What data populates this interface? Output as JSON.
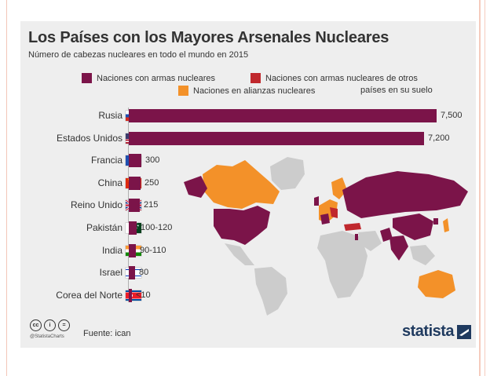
{
  "chart_data": {
    "type": "bar",
    "orientation": "horizontal",
    "title": "Los Países con los Mayores Arsenales Nucleares",
    "subtitle": "Número de cabezas nucleares en todo el mundo en 2015",
    "categories": [
      "Rusia",
      "Estados Unidos",
      "Francia",
      "China",
      "Reino Unido",
      "Pakistán",
      "India",
      "Israel",
      "Corea del Norte"
    ],
    "values": [
      7500,
      7200,
      300,
      250,
      215,
      110,
      100,
      80,
      10
    ],
    "value_labels": [
      "7,500",
      "7,200",
      "300",
      "250",
      "215",
      "100-120",
      "90-110",
      "80",
      "<10"
    ],
    "legend": [
      {
        "label": "Naciones con armas nucleares",
        "color": "#7b1449"
      },
      {
        "label": "Naciones con armas nucleares de otros países en su suelo",
        "label_line1": "Naciones con armas nucleares de otros",
        "label_line2": "países en su suelo",
        "color": "#c0282d"
      },
      {
        "label": "Naciones en alianzas nucleares",
        "color": "#f39129"
      }
    ],
    "bar_color": "#7b1449",
    "xlim": [
      0,
      7500
    ],
    "grid": false
  },
  "flags": [
    "russia-flag-icon",
    "usa-flag-icon",
    "france-flag-icon",
    "china-flag-icon",
    "uk-flag-icon",
    "pakistan-flag-icon",
    "india-flag-icon",
    "israel-flag-icon",
    "north-korea-flag-icon"
  ],
  "map_colors": {
    "nuclear": "#7b1449",
    "hosting": "#c0282d",
    "alliance": "#f39129",
    "other": "#cccccc"
  },
  "footer": {
    "handle": "@StatistaCharts",
    "source": "Fuente: ican",
    "brand": "statista",
    "icons": [
      "cc-icon",
      "by-icon",
      "nd-icon"
    ]
  }
}
